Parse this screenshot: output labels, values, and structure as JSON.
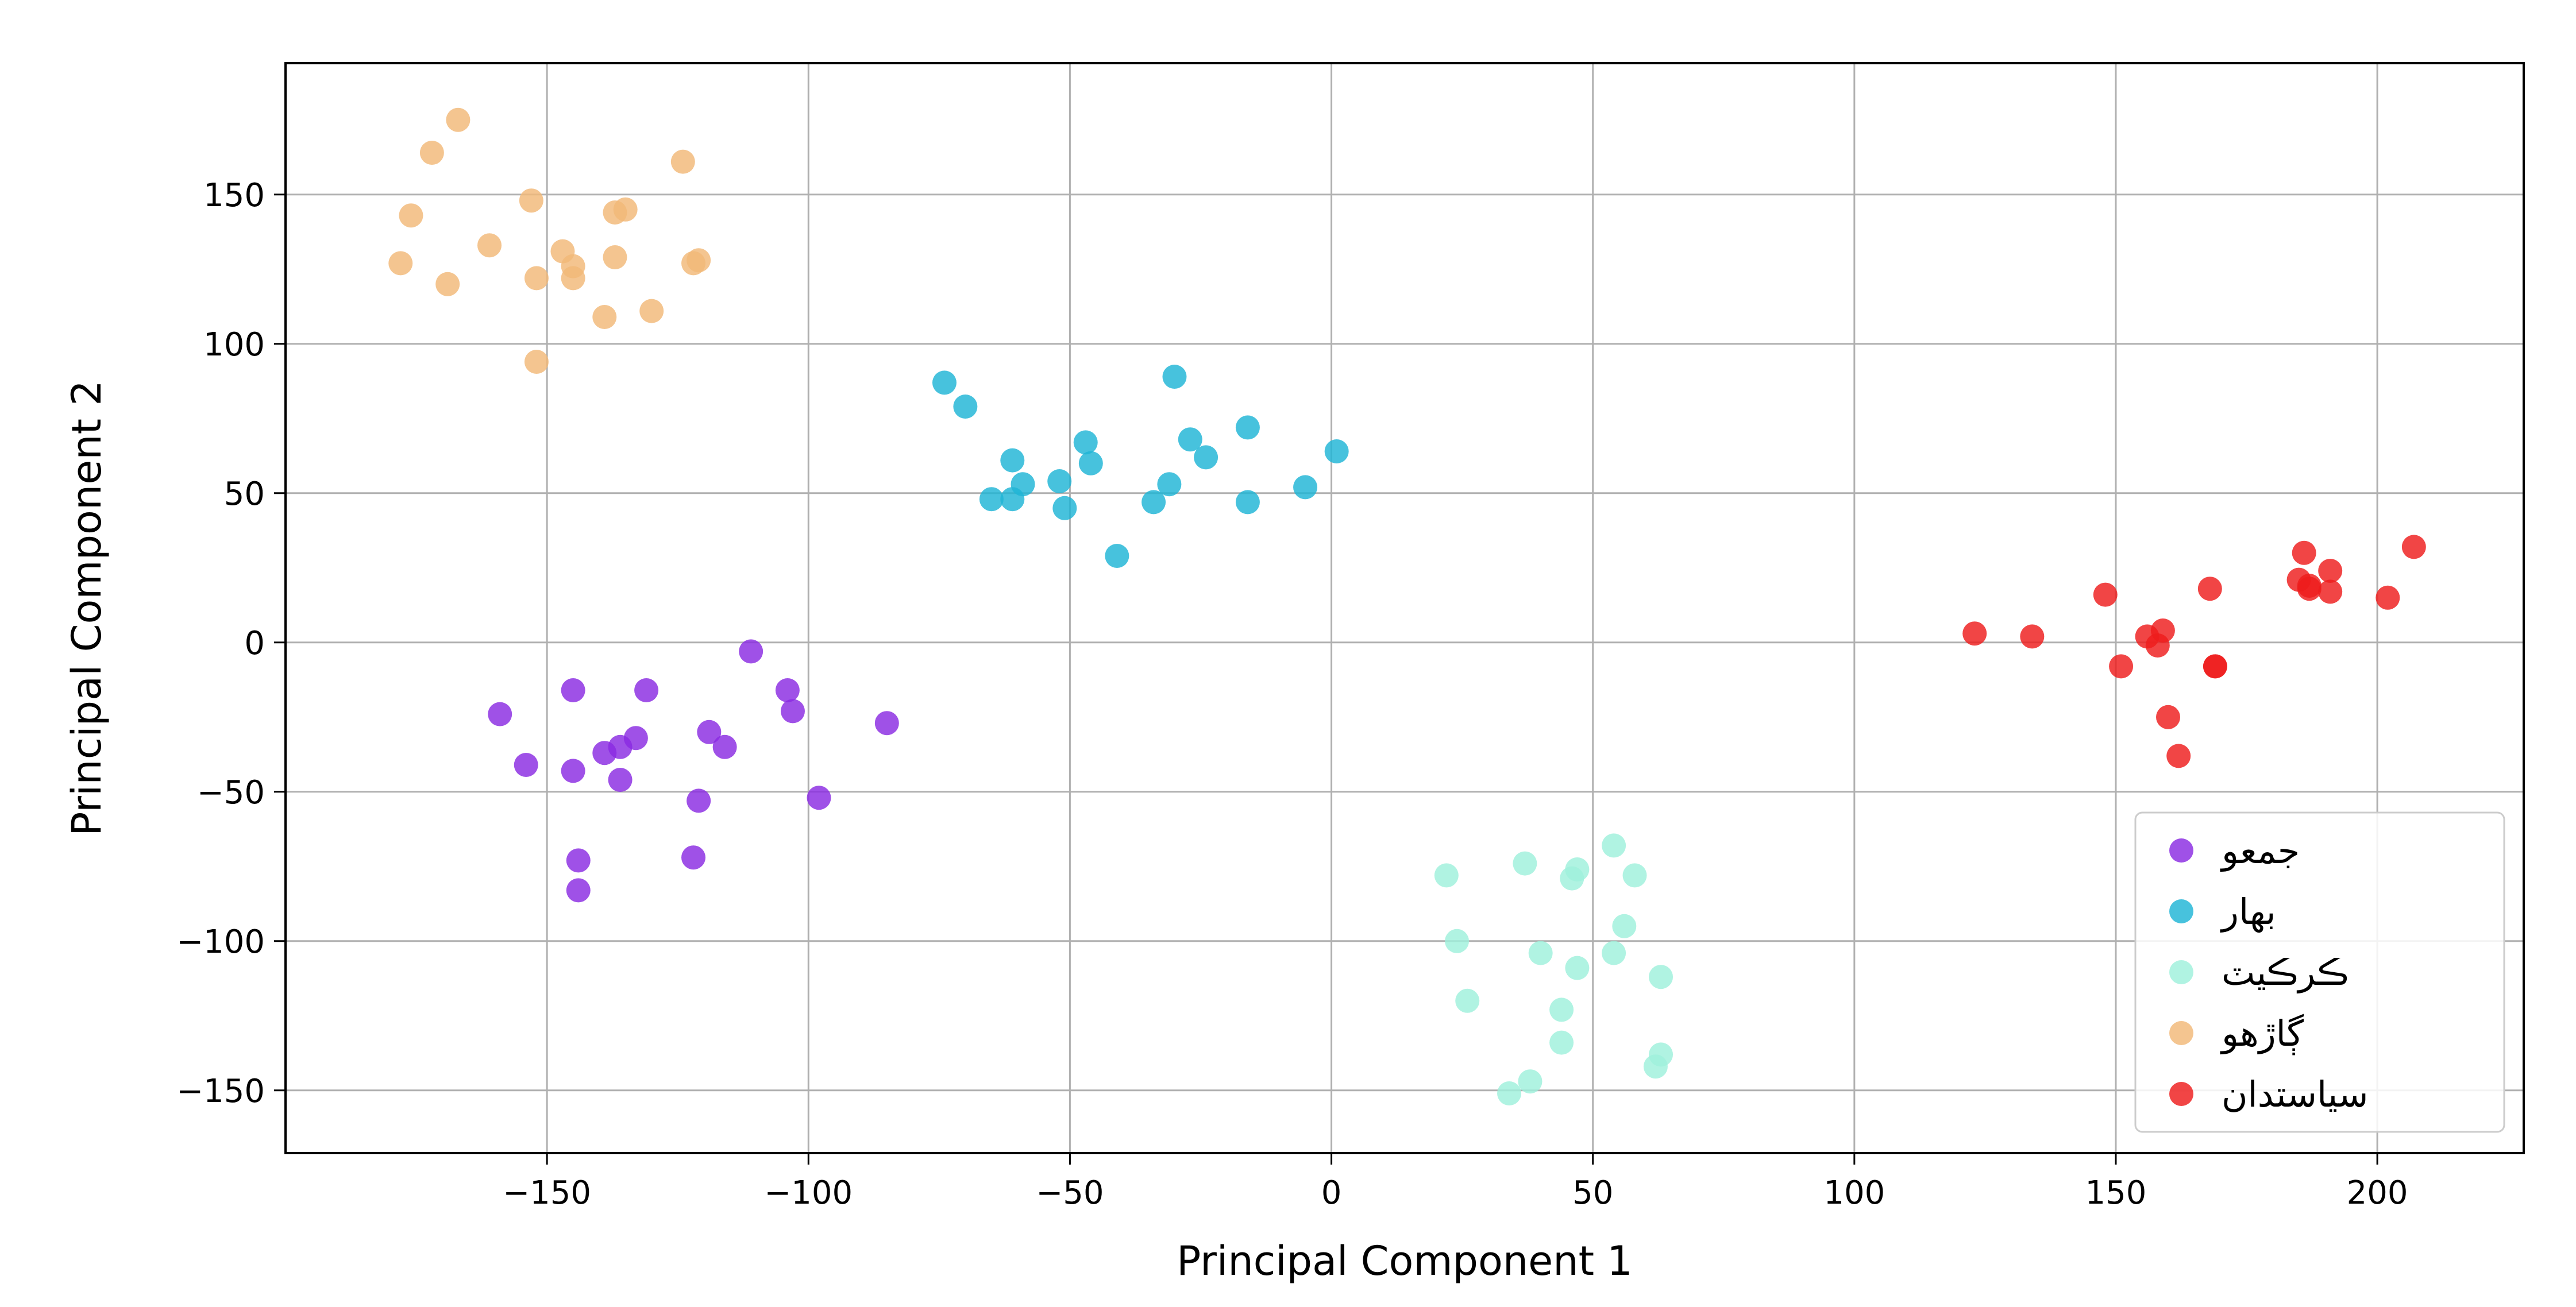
{
  "chart_data": {
    "type": "scatter",
    "xlabel": "Principal Component 1",
    "ylabel": "Principal Component 2",
    "xlim": [
      -200,
      228
    ],
    "ylim": [
      -171,
      194
    ],
    "xticks": [
      -150,
      -100,
      -50,
      0,
      50,
      100,
      150,
      200
    ],
    "yticks": [
      -150,
      -100,
      -50,
      0,
      50,
      100,
      150
    ],
    "xtick_labels": [
      "−150",
      "−100",
      "−50",
      "0",
      "50",
      "100",
      "150",
      "200"
    ],
    "ytick_labels": [
      "−150",
      "−100",
      "−50",
      "0",
      "50",
      "100",
      "150"
    ],
    "grid": true,
    "legend_position": "lower-right",
    "series": [
      {
        "name": "جمعو",
        "color": "#8a2be2",
        "points": [
          [
            -159,
            -24
          ],
          [
            -154,
            -41
          ],
          [
            -145,
            -16
          ],
          [
            -145,
            -43
          ],
          [
            -144,
            -73
          ],
          [
            -144,
            -83
          ],
          [
            -139,
            -37
          ],
          [
            -136,
            -35
          ],
          [
            -136,
            -46
          ],
          [
            -133,
            -32
          ],
          [
            -131,
            -16
          ],
          [
            -122,
            -72
          ],
          [
            -121,
            -53
          ],
          [
            -119,
            -30
          ],
          [
            -116,
            -35
          ],
          [
            -111,
            -3
          ],
          [
            -104,
            -16
          ],
          [
            -103,
            -23
          ],
          [
            -98,
            -52
          ],
          [
            -85,
            -27
          ]
        ]
      },
      {
        "name": "بهار",
        "color": "#1fb5d6",
        "points": [
          [
            -74,
            87
          ],
          [
            -70,
            79
          ],
          [
            -65,
            48
          ],
          [
            -61,
            48
          ],
          [
            -61,
            61
          ],
          [
            -59,
            53
          ],
          [
            -52,
            54
          ],
          [
            -51,
            45
          ],
          [
            -47,
            67
          ],
          [
            -46,
            60
          ],
          [
            -41,
            29
          ],
          [
            -34,
            47
          ],
          [
            -31,
            53
          ],
          [
            -30,
            89
          ],
          [
            -27,
            68
          ],
          [
            -24,
            62
          ],
          [
            -16,
            72
          ],
          [
            -16,
            47
          ],
          [
            -5,
            52
          ],
          [
            1,
            64
          ]
        ]
      },
      {
        "name": "ڪرڪيٽ",
        "color": "#9ff0dc",
        "points": [
          [
            22,
            -78
          ],
          [
            24,
            -100
          ],
          [
            26,
            -120
          ],
          [
            34,
            -151
          ],
          [
            37,
            -74
          ],
          [
            38,
            -147
          ],
          [
            40,
            -104
          ],
          [
            44,
            -123
          ],
          [
            44,
            -134
          ],
          [
            46,
            -79
          ],
          [
            47,
            -76
          ],
          [
            47,
            -109
          ],
          [
            54,
            -68
          ],
          [
            54,
            -104
          ],
          [
            56,
            -95
          ],
          [
            58,
            -78
          ],
          [
            62,
            -142
          ],
          [
            63,
            -138
          ],
          [
            63,
            -112
          ]
        ]
      },
      {
        "name": "ڳاڙهو",
        "color": "#f2b877",
        "points": [
          [
            -178,
            127
          ],
          [
            -176,
            143
          ],
          [
            -172,
            164
          ],
          [
            -169,
            120
          ],
          [
            -167,
            175
          ],
          [
            -161,
            133
          ],
          [
            -153,
            148
          ],
          [
            -152,
            122
          ],
          [
            -152,
            94
          ],
          [
            -147,
            131
          ],
          [
            -145,
            122
          ],
          [
            -145,
            126
          ],
          [
            -139,
            109
          ],
          [
            -137,
            129
          ],
          [
            -137,
            144
          ],
          [
            -135,
            145
          ],
          [
            -130,
            111
          ],
          [
            -124,
            161
          ],
          [
            -122,
            127
          ],
          [
            -121,
            128
          ]
        ]
      },
      {
        "name": "سياستدان",
        "color": "#ee1c1c",
        "points": [
          [
            123,
            3
          ],
          [
            134,
            2
          ],
          [
            148,
            16
          ],
          [
            151,
            -8
          ],
          [
            156,
            2
          ],
          [
            158,
            -1
          ],
          [
            159,
            4
          ],
          [
            160,
            -25
          ],
          [
            162,
            -38
          ],
          [
            168,
            18
          ],
          [
            169,
            -8
          ],
          [
            169,
            -8
          ],
          [
            185,
            21
          ],
          [
            186,
            30
          ],
          [
            187,
            18
          ],
          [
            187,
            19
          ],
          [
            191,
            17
          ],
          [
            191,
            24
          ],
          [
            202,
            15
          ],
          [
            207,
            32
          ]
        ]
      }
    ]
  }
}
